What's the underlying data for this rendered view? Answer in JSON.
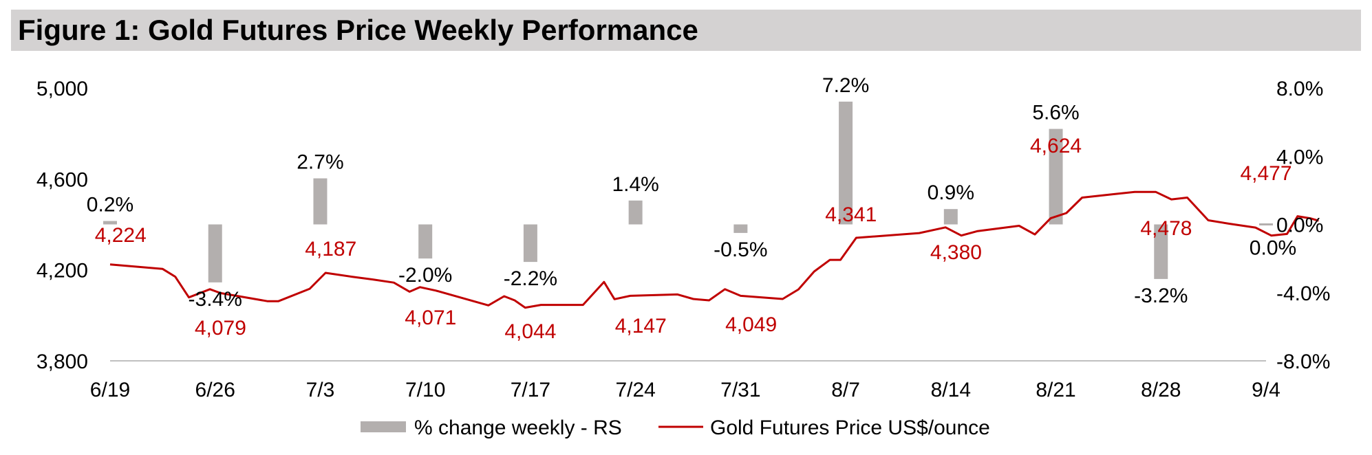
{
  "title": "Figure 1: Gold Futures Price Weekly Performance",
  "chart_data": {
    "type": "bar+line",
    "colors": {
      "bars": "#b3afae",
      "line": "#c00000",
      "title_bg": "#d4d2d2"
    },
    "x_ticks": [
      "6/19",
      "6/26",
      "7/3",
      "7/10",
      "7/17",
      "7/24",
      "7/31",
      "8/7",
      "8/14",
      "8/21",
      "8/28",
      "9/4"
    ],
    "left_axis": {
      "ticks": [
        "3,800",
        "4,200",
        "4,600",
        "5,000"
      ],
      "range": [
        3800,
        5000
      ]
    },
    "right_axis": {
      "ticks": [
        "-8.0%",
        "-4.0%",
        "0.0%",
        "4.0%",
        "8.0%"
      ],
      "range": [
        -8,
        8
      ]
    },
    "bars": {
      "name": "% change weekly - RS",
      "values": [
        0.2,
        -3.4,
        2.7,
        -2.0,
        -2.2,
        1.4,
        -0.5,
        7.2,
        0.9,
        5.6,
        -3.2,
        0.0
      ],
      "labels": [
        "0.2%",
        "-3.4%",
        "2.7%",
        "-2.0%",
        "-2.2%",
        "1.4%",
        "-0.5%",
        "7.2%",
        "0.9%",
        "5.6%",
        "-3.2%",
        "0.0%"
      ]
    },
    "line": {
      "name": "Gold Futures Price US$/ounce",
      "points": [
        [
          0,
          4224
        ],
        [
          0.5,
          4204
        ],
        [
          0.62,
          4170
        ],
        [
          0.75,
          4079
        ],
        [
          0.95,
          4115
        ],
        [
          1.05,
          4098
        ],
        [
          1.5,
          4062
        ],
        [
          1.6,
          4062
        ],
        [
          1.9,
          4117
        ],
        [
          2.05,
          4187
        ],
        [
          2.3,
          4170
        ],
        [
          2.5,
          4158
        ],
        [
          2.7,
          4144
        ],
        [
          2.85,
          4104
        ],
        [
          2.95,
          4124
        ],
        [
          3.1,
          4109
        ],
        [
          3.6,
          4044
        ],
        [
          3.75,
          4084
        ],
        [
          3.85,
          4066
        ],
        [
          3.95,
          4034
        ],
        [
          4.1,
          4046
        ],
        [
          4.5,
          4046
        ],
        [
          4.7,
          4147
        ],
        [
          4.8,
          4071
        ],
        [
          4.95,
          4086
        ],
        [
          5.4,
          4092
        ],
        [
          5.55,
          4072
        ],
        [
          5.7,
          4066
        ],
        [
          5.85,
          4115
        ],
        [
          6.0,
          4086
        ],
        [
          6.4,
          4072
        ],
        [
          6.55,
          4114
        ],
        [
          6.7,
          4193
        ],
        [
          6.85,
          4244
        ],
        [
          6.95,
          4244
        ],
        [
          7.1,
          4341
        ],
        [
          7.7,
          4362
        ],
        [
          7.95,
          4387
        ],
        [
          8.1,
          4351
        ],
        [
          8.25,
          4370
        ],
        [
          8.65,
          4394
        ],
        [
          8.8,
          4356
        ],
        [
          8.95,
          4427
        ],
        [
          9.1,
          4450
        ],
        [
          9.25,
          4518
        ],
        [
          9.55,
          4533
        ],
        [
          9.75,
          4543
        ],
        [
          9.95,
          4543
        ],
        [
          10.1,
          4510
        ],
        [
          10.25,
          4518
        ],
        [
          10.45,
          4418
        ],
        [
          10.65,
          4403
        ],
        [
          10.9,
          4386
        ],
        [
          11.05,
          4351
        ],
        [
          11.2,
          4358
        ],
        [
          11.3,
          4436
        ],
        [
          11.42,
          4427
        ],
        [
          11.5,
          4416
        ]
      ],
      "labels": [
        {
          "x": 0.1,
          "v": 4224,
          "text": "4,224"
        },
        {
          "x": 1.05,
          "v": 4079,
          "text": "4,079"
        },
        {
          "x": 2.1,
          "v": 4187,
          "text": "4,187"
        },
        {
          "x": 3.05,
          "v": 4071,
          "text": "4,071"
        },
        {
          "x": 4.0,
          "v": 4044,
          "text": "4,044"
        },
        {
          "x": 5.05,
          "v": 4147,
          "text": "4,147"
        },
        {
          "x": 6.1,
          "v": 4049,
          "text": "4,049"
        },
        {
          "x": 7.05,
          "v": 4341,
          "text": "4,341"
        },
        {
          "x": 8.05,
          "v": 4380,
          "text": "4,380"
        },
        {
          "x": 9.0,
          "v": 4624,
          "text": "4,624"
        },
        {
          "x": 10.05,
          "v": 4478,
          "text": "4,478"
        },
        {
          "x": 11.0,
          "v": 4477,
          "text": "4,477"
        }
      ]
    },
    "legend": {
      "placement": "bottom-center"
    },
    "grid": false
  }
}
